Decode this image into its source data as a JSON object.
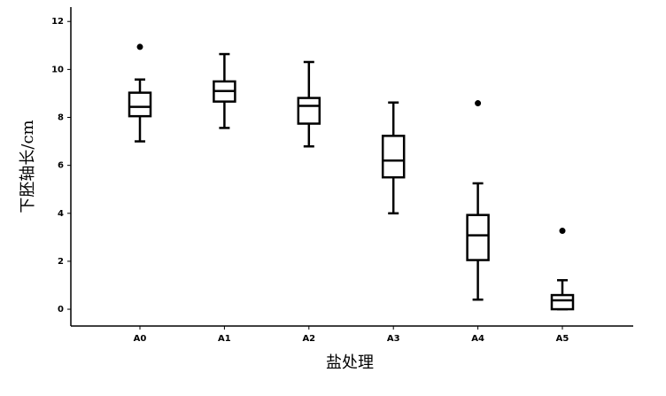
{
  "chart_data": {
    "type": "box",
    "x_label": "盐处理",
    "y_label": "下胚轴长/cm",
    "categories": [
      "A0",
      "A1",
      "A2",
      "A3",
      "A4",
      "A5"
    ],
    "boxes": [
      {
        "whislo": 7.0,
        "q1": 8.05,
        "med": 8.44,
        "q3": 9.03,
        "whishi": 9.58,
        "fliers": [
          10.94
        ]
      },
      {
        "whislo": 7.56,
        "q1": 8.66,
        "med": 9.1,
        "q3": 9.5,
        "whishi": 10.64,
        "fliers": []
      },
      {
        "whislo": 6.79,
        "q1": 7.74,
        "med": 8.48,
        "q3": 8.81,
        "whishi": 10.31,
        "fliers": []
      },
      {
        "whislo": 4.0,
        "q1": 5.5,
        "med": 6.2,
        "q3": 7.23,
        "whishi": 8.62,
        "fliers": []
      },
      {
        "whislo": 0.4,
        "q1": 2.05,
        "med": 3.08,
        "q3": 3.93,
        "whishi": 5.25,
        "fliers": [
          8.59
        ]
      },
      {
        "whislo": 0,
        "q1": 0,
        "med": 0.37,
        "q3": 0.59,
        "whishi": 1.21,
        "fliers": [
          3.27
        ]
      }
    ],
    "color": "#000000",
    "ylim": [
      -0.7,
      12.6
    ],
    "yticks": [
      0,
      2,
      4,
      6,
      8,
      10,
      12
    ],
    "grid": false
  }
}
